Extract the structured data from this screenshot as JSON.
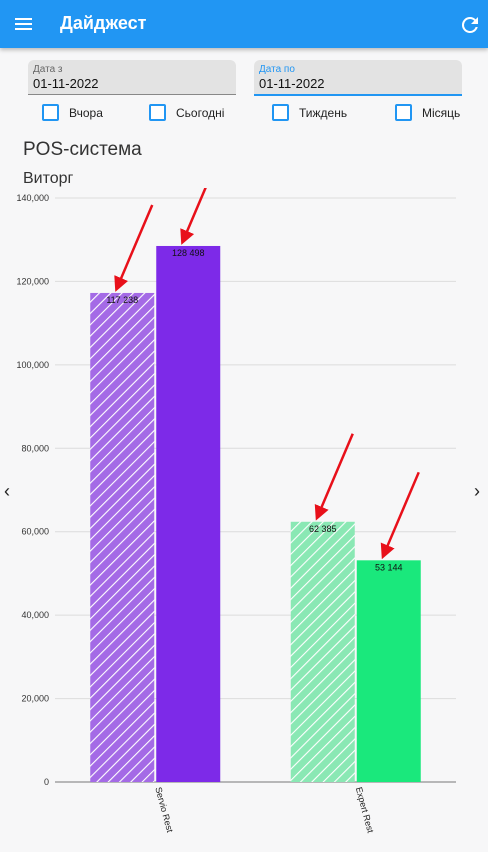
{
  "app": {
    "title": "Дайджест",
    "menu_icon": "hamburger-menu-icon",
    "refresh_icon": "refresh-icon",
    "accent_color": "#2196f3"
  },
  "filters": {
    "date_from": {
      "label": "Дата з",
      "value": "01-11-2022"
    },
    "date_to": {
      "label": "Дата по",
      "value": "01-11-2022"
    },
    "periods": [
      {
        "label": "Вчора",
        "checked": false
      },
      {
        "label": "Сьогодні",
        "checked": false
      },
      {
        "label": "Тиждень",
        "checked": false
      },
      {
        "label": "Місяць",
        "checked": false
      }
    ]
  },
  "section": {
    "title": "POS-система"
  },
  "nav": {
    "prev_icon": "chevron-left-icon",
    "next_icon": "chevron-right-icon"
  },
  "chart_data": {
    "type": "bar",
    "title": "Виторг",
    "categories": [
      "Servio Rest",
      "Expert Rest"
    ],
    "series": [
      {
        "values": [
          117238,
          62385
        ],
        "style": "hatched"
      },
      {
        "values": [
          128498,
          53144
        ],
        "style": "solid"
      }
    ],
    "data_labels": [
      [
        "117 238",
        "62 385"
      ],
      [
        "128 498",
        "53 144"
      ]
    ],
    "colors": {
      "Servio Rest": {
        "hatched": "#a46ae6",
        "solid": "#7d2ae8"
      },
      "Expert Rest": {
        "hatched": "#8ae8b4",
        "solid": "#1ae87c"
      }
    },
    "annotation_color": "#e8101a",
    "ylim": [
      0,
      140000
    ],
    "yticks": [
      0,
      20000,
      40000,
      60000,
      80000,
      100000,
      120000,
      140000
    ],
    "ytick_labels": [
      "0",
      "20,000",
      "40,000",
      "60,000",
      "80,000",
      "100,000",
      "120,000",
      "140,000"
    ],
    "grid": true
  }
}
